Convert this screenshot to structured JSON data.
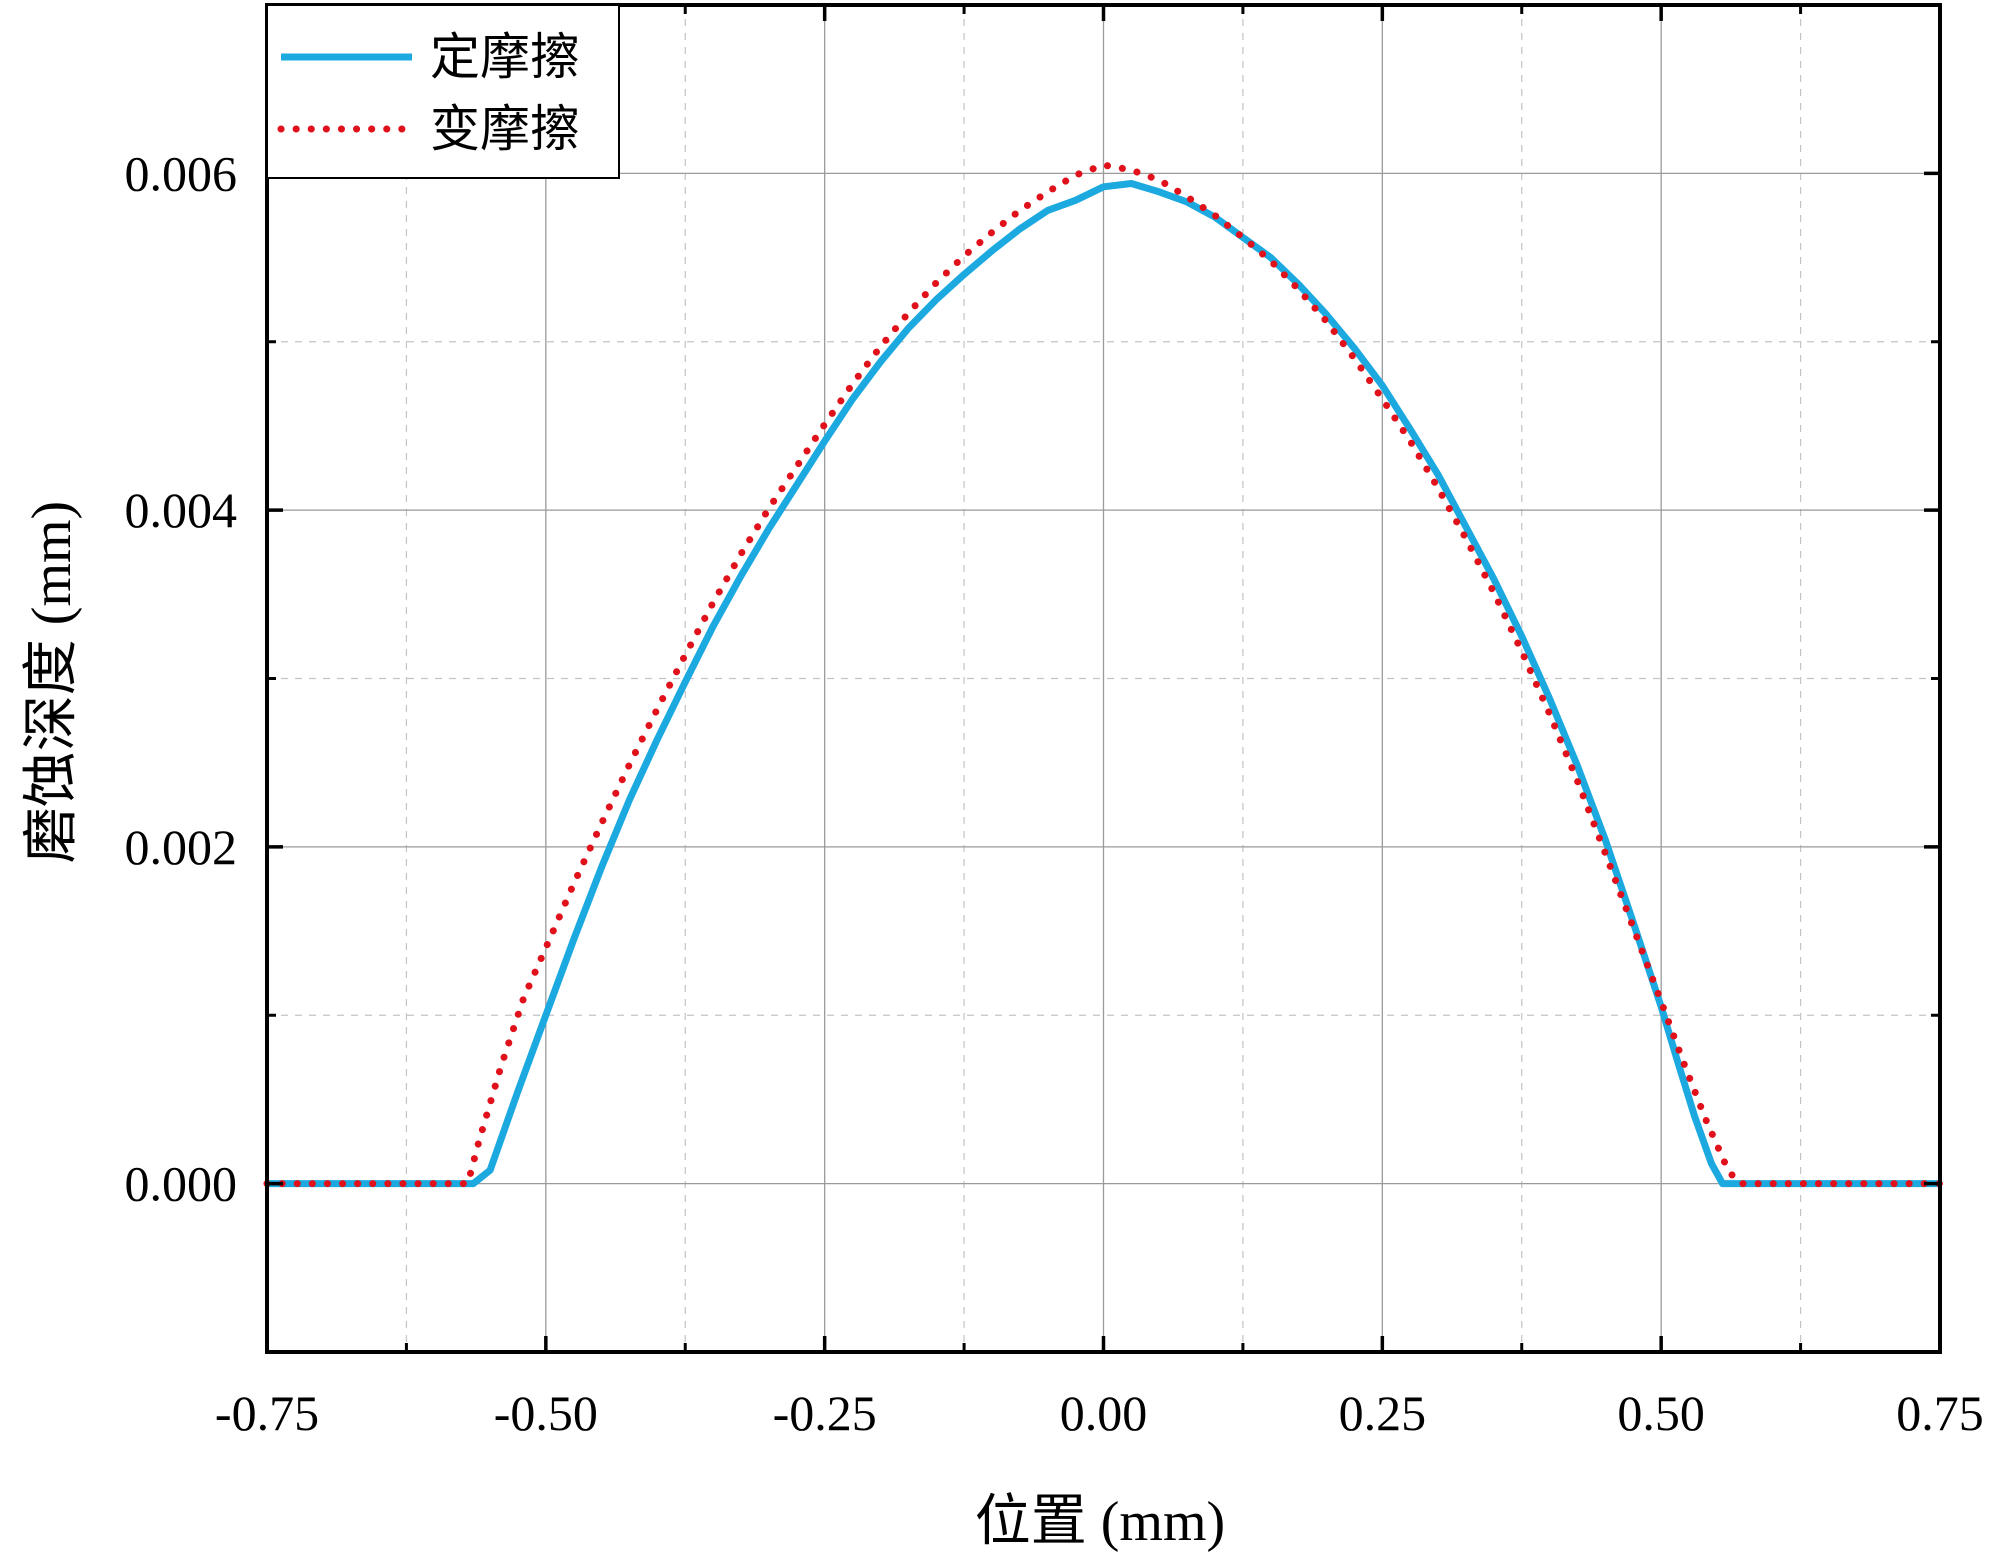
{
  "chart_data": {
    "type": "line",
    "title": "",
    "xlabel": "位置 (mm)",
    "ylabel": "磨蚀深度 (mm)",
    "xlim": [
      -0.75,
      0.75
    ],
    "ylim": [
      -0.001,
      0.007
    ],
    "x_ticks": [
      -0.75,
      -0.5,
      -0.25,
      0.0,
      0.25,
      0.5,
      0.75
    ],
    "x_tick_labels": [
      "-0.75",
      "-0.50",
      "-0.25",
      "0.00",
      "0.25",
      "0.50",
      "0.75"
    ],
    "y_ticks": [
      0.0,
      0.002,
      0.004,
      0.006
    ],
    "y_tick_labels": [
      "0.000",
      "0.002",
      "0.004",
      "0.006"
    ],
    "grid": true,
    "legend_position": "top-left",
    "series": [
      {
        "name": "定摩擦",
        "style": "solid",
        "color": "#1BA9E0",
        "x": [
          -0.75,
          -0.6,
          -0.565,
          -0.55,
          -0.525,
          -0.5,
          -0.475,
          -0.45,
          -0.425,
          -0.4,
          -0.375,
          -0.35,
          -0.325,
          -0.3,
          -0.275,
          -0.25,
          -0.225,
          -0.2,
          -0.175,
          -0.15,
          -0.125,
          -0.1,
          -0.075,
          -0.05,
          -0.025,
          0.0,
          0.025,
          0.05,
          0.075,
          0.1,
          0.125,
          0.15,
          0.175,
          0.2,
          0.225,
          0.25,
          0.275,
          0.3,
          0.325,
          0.35,
          0.375,
          0.4,
          0.425,
          0.45,
          0.475,
          0.5,
          0.515,
          0.53,
          0.545,
          0.555,
          0.6,
          0.75
        ],
        "y": [
          0.0,
          0.0,
          0.0,
          8e-05,
          0.00055,
          0.001,
          0.00145,
          0.00188,
          0.00228,
          0.00264,
          0.00298,
          0.00331,
          0.00361,
          0.00389,
          0.00415,
          0.00441,
          0.00466,
          0.00488,
          0.00508,
          0.00525,
          0.0054,
          0.00554,
          0.00567,
          0.00578,
          0.00584,
          0.00592,
          0.00594,
          0.00589,
          0.00583,
          0.00574,
          0.00562,
          0.0055,
          0.00534,
          0.00516,
          0.00496,
          0.00474,
          0.00448,
          0.00421,
          0.0039,
          0.00359,
          0.00325,
          0.00288,
          0.00248,
          0.00204,
          0.00155,
          0.00105,
          0.00072,
          0.0004,
          0.00012,
          0.0,
          0.0,
          0.0
        ]
      },
      {
        "name": "变摩擦",
        "style": "dotted",
        "color": "#E0111B",
        "x": [
          -0.75,
          -0.6,
          -0.57,
          -0.56,
          -0.54,
          -0.52,
          -0.5,
          -0.475,
          -0.45,
          -0.425,
          -0.4,
          -0.375,
          -0.35,
          -0.325,
          -0.3,
          -0.275,
          -0.25,
          -0.225,
          -0.2,
          -0.175,
          -0.15,
          -0.125,
          -0.1,
          -0.075,
          -0.05,
          -0.025,
          0.0,
          0.025,
          0.05,
          0.075,
          0.1,
          0.125,
          0.15,
          0.175,
          0.2,
          0.225,
          0.25,
          0.275,
          0.3,
          0.325,
          0.35,
          0.375,
          0.4,
          0.425,
          0.45,
          0.475,
          0.5,
          0.52,
          0.54,
          0.56,
          0.57,
          0.6,
          0.75
        ],
        "y": [
          0.0,
          0.0,
          0.0,
          0.00025,
          0.0007,
          0.0011,
          0.0014,
          0.00178,
          0.00214,
          0.00249,
          0.00282,
          0.00314,
          0.00345,
          0.00374,
          0.00401,
          0.00426,
          0.00451,
          0.00475,
          0.00497,
          0.00517,
          0.00535,
          0.00551,
          0.00565,
          0.00578,
          0.00589,
          0.00599,
          0.00605,
          0.00602,
          0.00596,
          0.00586,
          0.00575,
          0.00562,
          0.00548,
          0.00531,
          0.00512,
          0.0049,
          0.00466,
          0.00441,
          0.00413,
          0.00383,
          0.00351,
          0.00316,
          0.00279,
          0.00239,
          0.00196,
          0.00152,
          0.00108,
          0.00072,
          0.00038,
          8e-05,
          0.0,
          0.0,
          0.0
        ]
      }
    ]
  }
}
